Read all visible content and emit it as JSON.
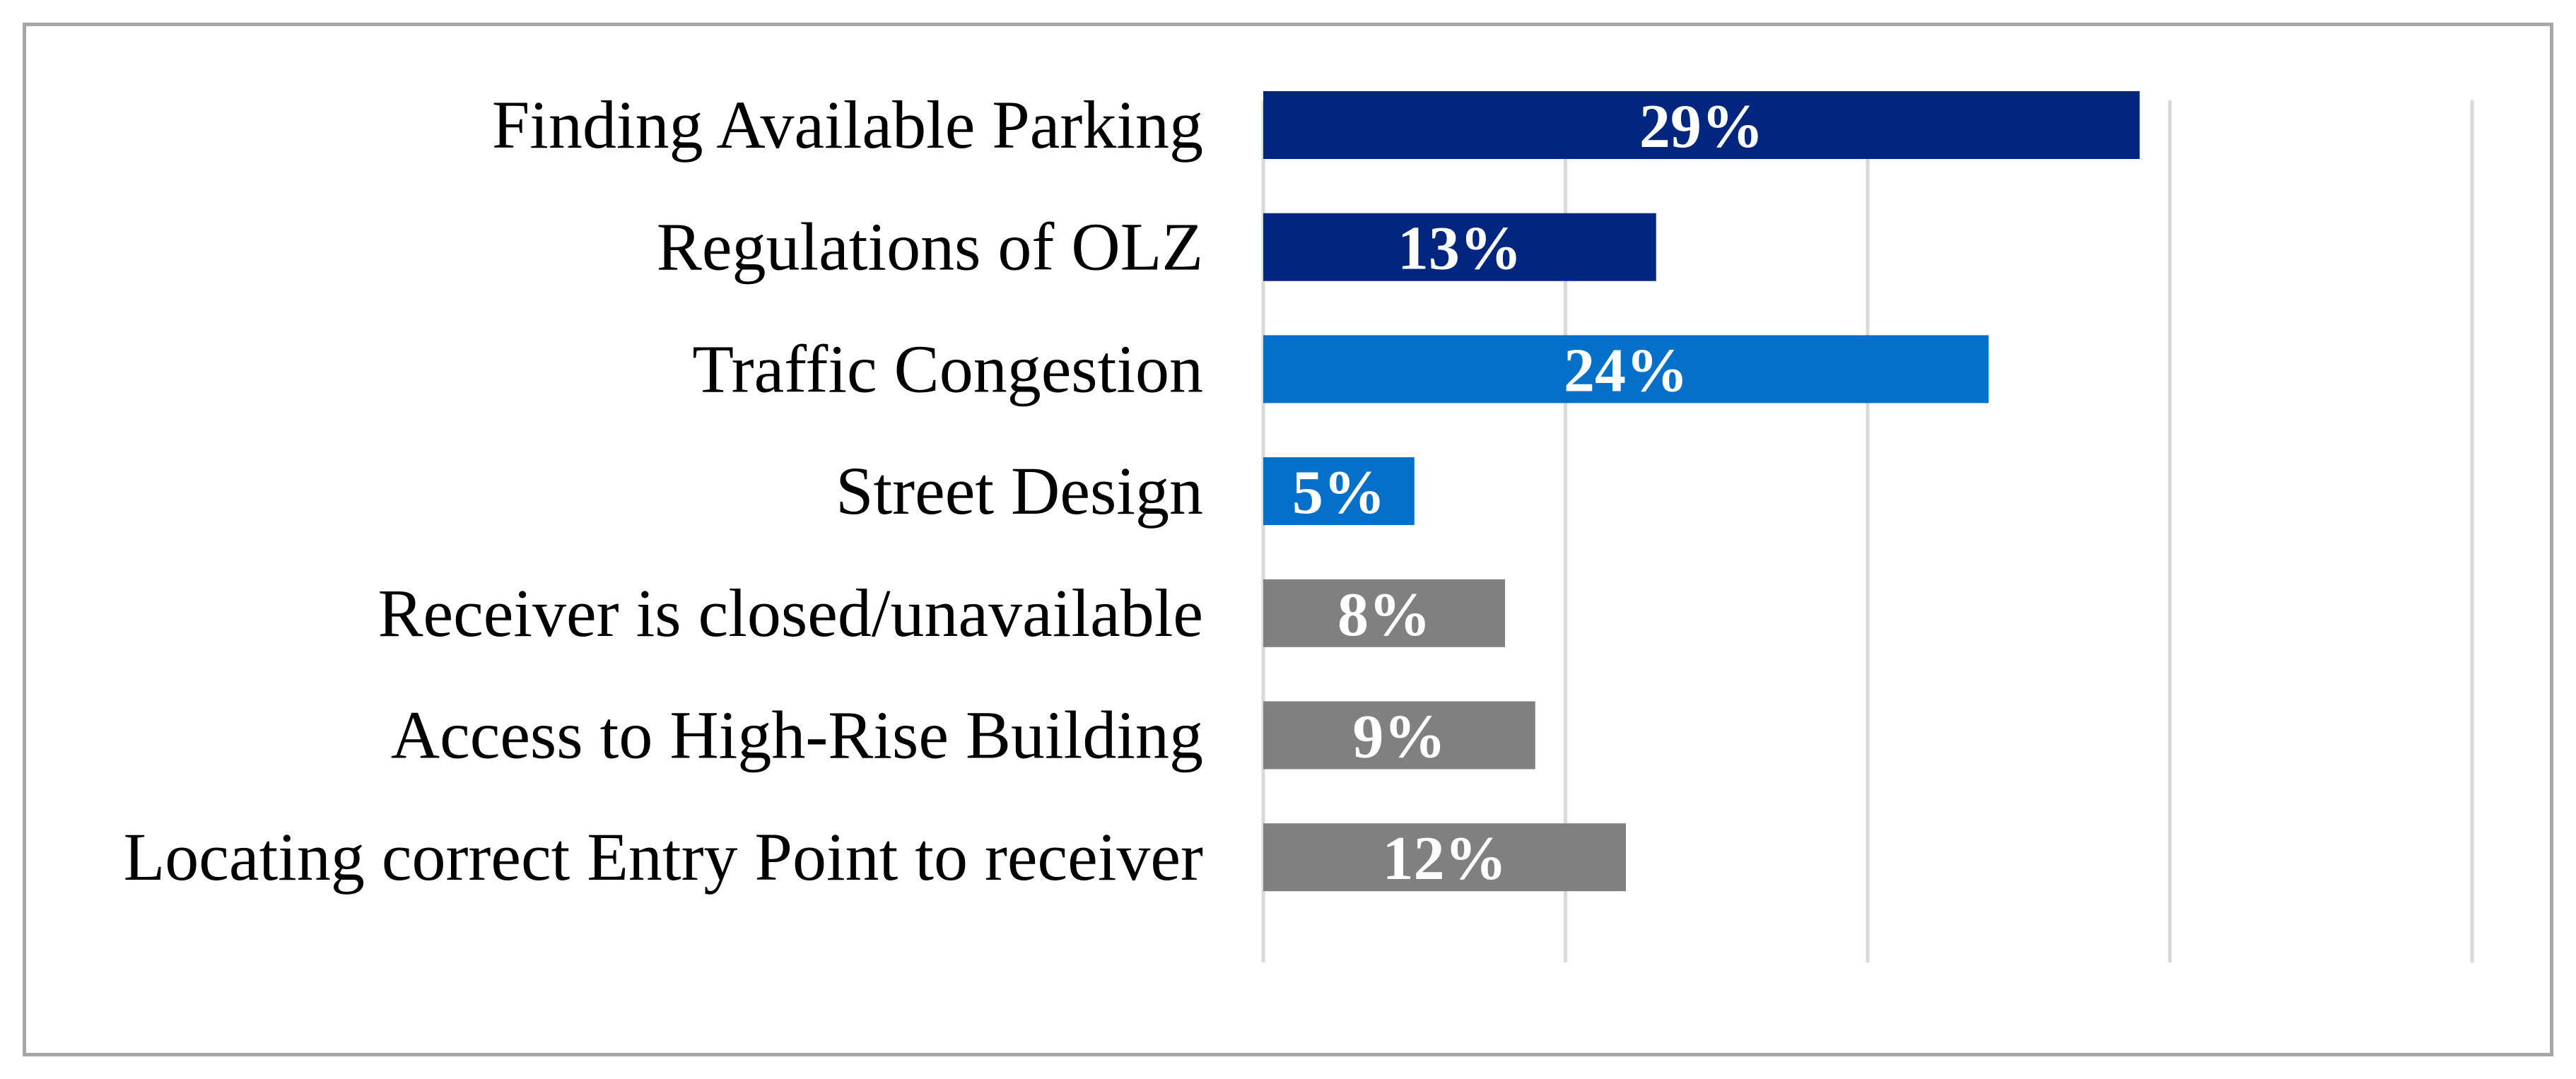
{
  "chart_data": {
    "type": "bar",
    "orientation": "horizontal",
    "title": "",
    "xlabel": "",
    "ylabel": "",
    "categories": [
      "Finding Available Parking",
      "Regulations of OLZ",
      "Traffic Congestion",
      "Street Design",
      "Receiver is closed/unavailable",
      "Access to High-Rise Building",
      "Locating correct Entry Point to receiver"
    ],
    "values": [
      29,
      13,
      24,
      5,
      8,
      9,
      12
    ],
    "value_labels": [
      "29%",
      "13%",
      "24%",
      "5%",
      "8%",
      "9%",
      "12%"
    ],
    "bar_colors": [
      "#002680",
      "#002680",
      "#0570c9",
      "#0570c9",
      "#808080",
      "#808080",
      "#808080"
    ],
    "xlim": [
      0,
      40
    ],
    "x_gridlines": [
      0,
      10,
      20,
      30,
      40
    ],
    "grid": true,
    "legend": "none"
  },
  "colors": {
    "frame_border": "#a6a6a6",
    "gridline": "#d9d9d9",
    "label_text": "#000000",
    "value_text": "#ffffff"
  }
}
